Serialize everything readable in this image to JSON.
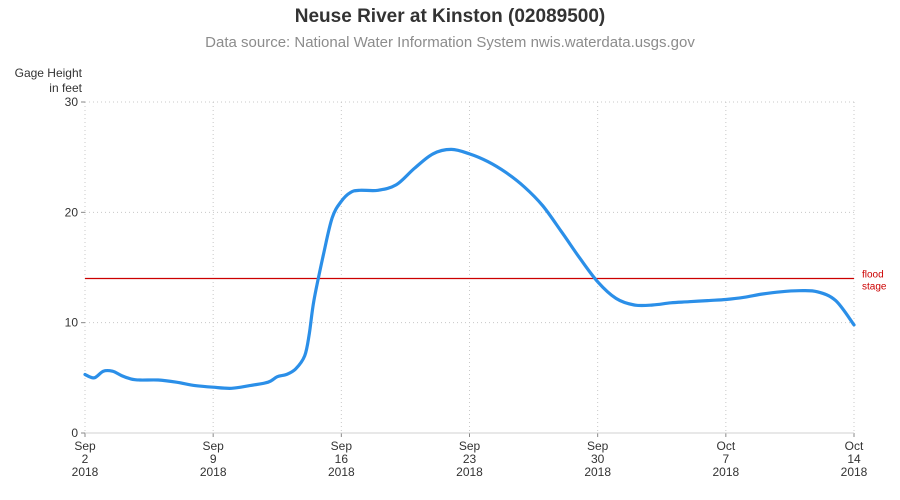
{
  "chart_data": {
    "type": "line",
    "title": "Neuse River at Kinston (02089500)",
    "subtitle": "Data source: National Water Information System nwis.waterdata.usgs.gov",
    "ylabel_lines": [
      "Gage Height",
      "in feet"
    ],
    "xlim": [
      "2018-09-02",
      "2018-10-14"
    ],
    "ylim": [
      0,
      30
    ],
    "y_ticks": [
      0,
      10,
      20,
      30
    ],
    "x_ticks": [
      {
        "date": "2018-09-02",
        "lines": [
          "Sep",
          "2",
          "2018"
        ]
      },
      {
        "date": "2018-09-09",
        "lines": [
          "Sep",
          "9",
          "2018"
        ]
      },
      {
        "date": "2018-09-16",
        "lines": [
          "Sep",
          "16",
          "2018"
        ]
      },
      {
        "date": "2018-09-23",
        "lines": [
          "Sep",
          "23",
          "2018"
        ]
      },
      {
        "date": "2018-09-30",
        "lines": [
          "Sep",
          "30",
          "2018"
        ]
      },
      {
        "date": "2018-10-07",
        "lines": [
          "Oct",
          "7",
          "2018"
        ]
      },
      {
        "date": "2018-10-14",
        "lines": [
          "Oct",
          "14",
          "2018"
        ]
      }
    ],
    "grid": true,
    "reference_line": {
      "value": 14,
      "label_lines": [
        "flood",
        "stage"
      ],
      "color": "#cc0000"
    },
    "series": [
      {
        "color": "#2b8fe8",
        "points": [
          [
            "2018-09-02",
            5.3
          ],
          [
            "2018-09-02 12:00",
            5.0
          ],
          [
            "2018-09-03",
            5.6
          ],
          [
            "2018-09-03 12:00",
            5.6
          ],
          [
            "2018-09-04",
            5.2
          ],
          [
            "2018-09-04 12:00",
            4.9
          ],
          [
            "2018-09-05",
            4.8
          ],
          [
            "2018-09-06",
            4.8
          ],
          [
            "2018-09-07",
            4.6
          ],
          [
            "2018-09-08",
            4.3
          ],
          [
            "2018-09-09",
            4.15
          ],
          [
            "2018-09-10",
            4.05
          ],
          [
            "2018-09-11",
            4.3
          ],
          [
            "2018-09-12",
            4.6
          ],
          [
            "2018-09-12 12:00",
            5.1
          ],
          [
            "2018-09-13",
            5.3
          ],
          [
            "2018-09-13 12:00",
            5.8
          ],
          [
            "2018-09-14",
            7.0
          ],
          [
            "2018-09-14 06:00",
            9.0
          ],
          [
            "2018-09-14 12:00",
            12.0
          ],
          [
            "2018-09-15",
            16.0
          ],
          [
            "2018-09-15 12:00",
            19.5
          ],
          [
            "2018-09-16",
            21.0
          ],
          [
            "2018-09-16 12:00",
            21.8
          ],
          [
            "2018-09-17",
            22.0
          ],
          [
            "2018-09-18",
            22.0
          ],
          [
            "2018-09-19",
            22.5
          ],
          [
            "2018-09-20",
            24.0
          ],
          [
            "2018-09-21",
            25.3
          ],
          [
            "2018-09-22",
            25.7
          ],
          [
            "2018-09-23",
            25.3
          ],
          [
            "2018-09-24",
            24.6
          ],
          [
            "2018-09-25",
            23.6
          ],
          [
            "2018-09-26",
            22.3
          ],
          [
            "2018-09-27",
            20.6
          ],
          [
            "2018-09-28",
            18.3
          ],
          [
            "2018-09-29",
            15.9
          ],
          [
            "2018-09-30",
            13.7
          ],
          [
            "2018-10-01",
            12.2
          ],
          [
            "2018-10-02",
            11.6
          ],
          [
            "2018-10-03",
            11.6
          ],
          [
            "2018-10-04",
            11.8
          ],
          [
            "2018-10-05",
            11.9
          ],
          [
            "2018-10-06",
            12.0
          ],
          [
            "2018-10-07",
            12.1
          ],
          [
            "2018-10-08",
            12.3
          ],
          [
            "2018-10-09",
            12.6
          ],
          [
            "2018-10-10",
            12.8
          ],
          [
            "2018-10-11",
            12.9
          ],
          [
            "2018-10-12",
            12.8
          ],
          [
            "2018-10-13",
            12.0
          ],
          [
            "2018-10-14",
            9.8
          ]
        ]
      }
    ]
  }
}
